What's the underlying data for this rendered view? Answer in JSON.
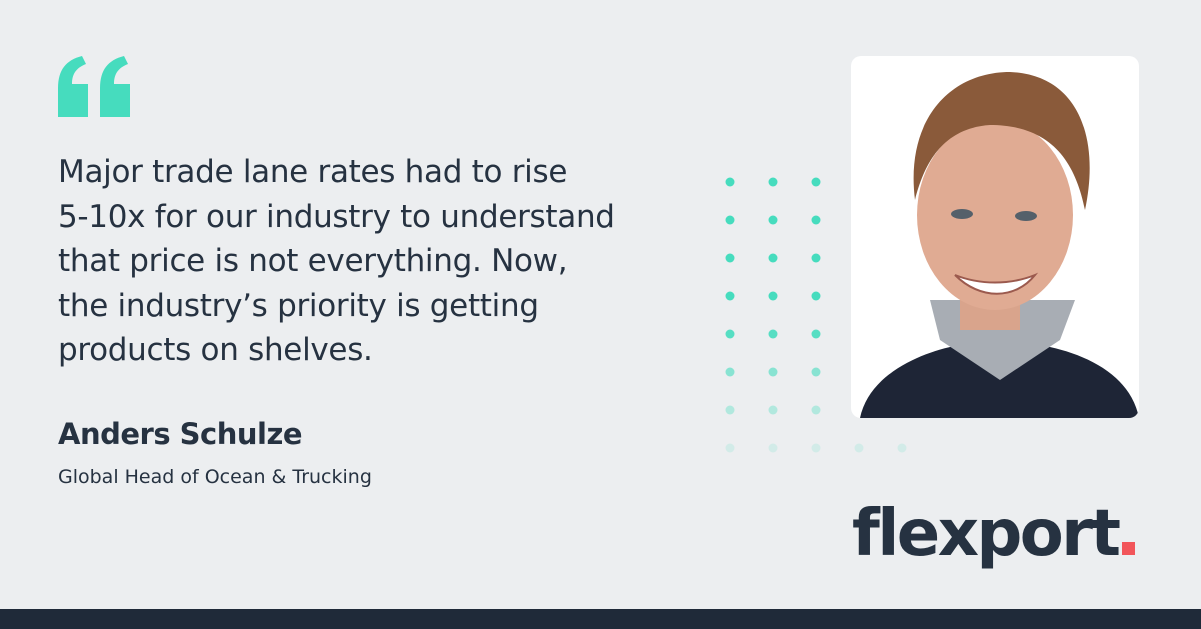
{
  "quote": {
    "lines": [
      "Major trade lane rates had to rise",
      "5-10x for our industry to understand",
      "that price is not everything. Now,",
      "the industry’s priority is getting",
      "products on shelves."
    ]
  },
  "author": {
    "name": "Anders Schulze",
    "role": "Global Head of Ocean & Trucking"
  },
  "logo": {
    "text": "flexport"
  }
}
